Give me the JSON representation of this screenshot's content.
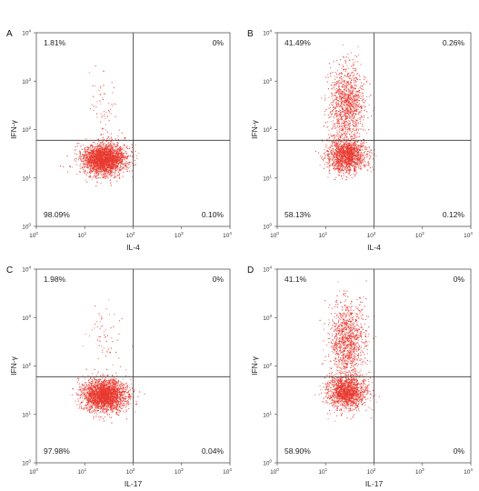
{
  "chart_data": [
    {
      "type": "scatter",
      "panel": "A",
      "xlabel": "IL-4",
      "ylabel": "IFN-γ",
      "xscale": "log",
      "yscale": "log",
      "xlim": [
        1,
        10000
      ],
      "ylim": [
        1,
        10000
      ],
      "gate": {
        "x": 100,
        "y": 60
      },
      "quadrants": {
        "upper_left": "1.81%",
        "upper_right": "0%",
        "lower_left": "98.09%",
        "lower_right": "0.10%"
      },
      "populations": [
        {
          "center": [
            25,
            25
          ],
          "spread": [
            0.22,
            0.16
          ],
          "fraction": 0.975
        },
        {
          "center": [
            25,
            300
          ],
          "spread": [
            0.16,
            0.35
          ],
          "fraction": 0.025
        }
      ],
      "point_color": "#e8392f"
    },
    {
      "type": "scatter",
      "panel": "B",
      "xlabel": "IL-4",
      "ylabel": "IFN-γ",
      "xscale": "log",
      "yscale": "log",
      "xlim": [
        1,
        10000
      ],
      "ylim": [
        1,
        10000
      ],
      "gate": {
        "x": 100,
        "y": 60
      },
      "quadrants": {
        "upper_left": "41.49%",
        "upper_right": "0.26%",
        "lower_left": "58.13%",
        "lower_right": "0.12%"
      },
      "populations": [
        {
          "center": [
            27,
            30
          ],
          "spread": [
            0.2,
            0.17
          ],
          "fraction": 0.58
        },
        {
          "center": [
            27,
            350
          ],
          "spread": [
            0.18,
            0.38
          ],
          "fraction": 0.42
        }
      ],
      "point_color": "#e8392f"
    },
    {
      "type": "scatter",
      "panel": "C",
      "xlabel": "IL-17",
      "ylabel": "IFN-γ",
      "xscale": "log",
      "yscale": "log",
      "xlim": [
        1,
        10000
      ],
      "ylim": [
        1,
        10000
      ],
      "gate": {
        "x": 100,
        "y": 60
      },
      "quadrants": {
        "upper_left": "1.98%",
        "upper_right": "0%",
        "lower_left": "97.98%",
        "lower_right": "0.04%"
      },
      "populations": [
        {
          "center": [
            25,
            25
          ],
          "spread": [
            0.22,
            0.16
          ],
          "fraction": 0.975
        },
        {
          "center": [
            25,
            300
          ],
          "spread": [
            0.16,
            0.35
          ],
          "fraction": 0.025
        }
      ],
      "point_color": "#e8392f"
    },
    {
      "type": "scatter",
      "panel": "D",
      "xlabel": "IL-17",
      "ylabel": "IFN-γ",
      "xscale": "log",
      "yscale": "log",
      "xlim": [
        1,
        10000
      ],
      "ylim": [
        1,
        10000
      ],
      "gate": {
        "x": 100,
        "y": 60
      },
      "quadrants": {
        "upper_left": "41.1%",
        "upper_right": "0%",
        "lower_left": "58.90%",
        "lower_right": "0%"
      },
      "populations": [
        {
          "center": [
            27,
            30
          ],
          "spread": [
            0.2,
            0.17
          ],
          "fraction": 0.59
        },
        {
          "center": [
            27,
            350
          ],
          "spread": [
            0.18,
            0.38
          ],
          "fraction": 0.41
        }
      ],
      "point_color": "#e8392f"
    }
  ]
}
